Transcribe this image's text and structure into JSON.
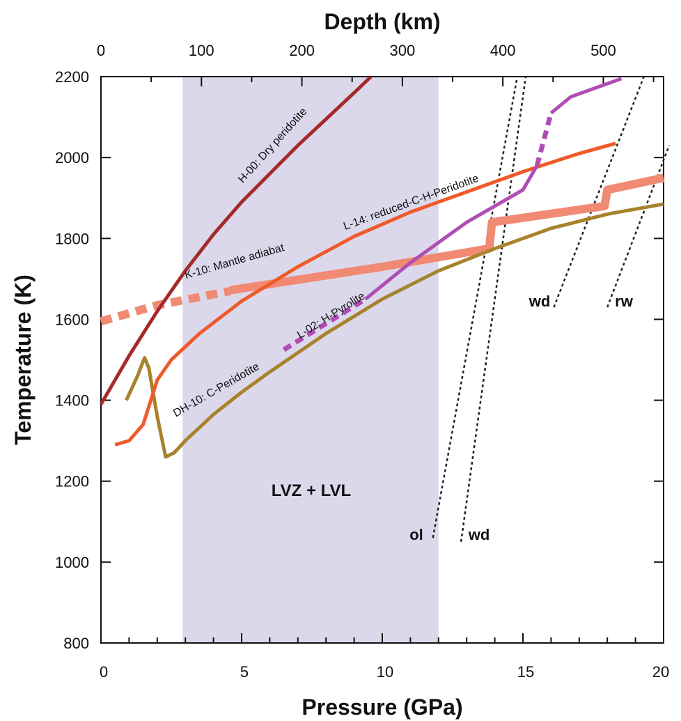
{
  "chart_data": {
    "type": "line",
    "title": "",
    "xlabel": "Pressure (GPa)",
    "ylabel": "Temperature (K)",
    "x2label": "Depth (km)",
    "xlim": [
      0,
      20
    ],
    "ylim": [
      800,
      2200
    ],
    "x2lim": [
      0,
      560
    ],
    "xticks": [
      0,
      5,
      10,
      15,
      20
    ],
    "yticks": [
      800,
      1000,
      1200,
      1400,
      1600,
      1800,
      2000,
      2200
    ],
    "x2ticks": [
      0,
      100,
      200,
      300,
      400,
      500
    ],
    "grid": false,
    "shaded_region": {
      "label": "LVZ + LVL",
      "x_range": [
        2.9,
        12
      ],
      "color": "#dcd8ec"
    },
    "series": [
      {
        "name": "H-00: Dry peridotite",
        "color": "#a52a2a",
        "style": "solid",
        "points": [
          [
            0,
            1390
          ],
          [
            1,
            1510
          ],
          [
            2,
            1620
          ],
          [
            3,
            1720
          ],
          [
            4,
            1810
          ],
          [
            5,
            1890
          ],
          [
            6,
            1960
          ],
          [
            7,
            2030
          ],
          [
            8,
            2095
          ],
          [
            9,
            2160
          ],
          [
            9.6,
            2200
          ]
        ]
      },
      {
        "name": "L-14: reduced-C-H-Peridotite",
        "color": "#ef5a2a",
        "style": "solid",
        "points": [
          [
            0.5,
            1290
          ],
          [
            1,
            1300
          ],
          [
            1.5,
            1340
          ],
          [
            2,
            1450
          ],
          [
            2.5,
            1500
          ],
          [
            3.5,
            1565
          ],
          [
            5,
            1645
          ],
          [
            7,
            1730
          ],
          [
            9,
            1805
          ],
          [
            11,
            1865
          ],
          [
            13,
            1915
          ],
          [
            15,
            1965
          ],
          [
            17,
            2010
          ],
          [
            18.3,
            2035
          ]
        ]
      },
      {
        "name": "K-10: Mantle adiabat",
        "color": "#f08a72",
        "style": "dashed_then_thick",
        "dashed_points": [
          [
            0,
            1595
          ],
          [
            2,
            1635
          ],
          [
            4.6,
            1670
          ]
        ],
        "points": [
          [
            4.6,
            1672
          ],
          [
            10,
            1730
          ],
          [
            13.8,
            1775
          ],
          [
            13.9,
            1840
          ],
          [
            17.9,
            1880
          ],
          [
            18,
            1920
          ],
          [
            20,
            1950
          ]
        ]
      },
      {
        "name": "L-02: H-Pyrolite",
        "color": "#b04db4",
        "style": "dashed_then_solid",
        "dashed_points": [
          [
            6.5,
            1525
          ],
          [
            9.4,
            1650
          ]
        ],
        "points": [
          [
            9.4,
            1650
          ],
          [
            11,
            1740
          ],
          [
            13,
            1840
          ],
          [
            15,
            1920
          ],
          [
            15.5,
            1980
          ]
        ],
        "dashed_points_2": [
          [
            15.5,
            1980
          ],
          [
            16,
            2110
          ]
        ],
        "points_2": [
          [
            16,
            2110
          ],
          [
            16.7,
            2150
          ],
          [
            18.5,
            2195
          ]
        ]
      },
      {
        "name": "DH-10: C-Peridotite",
        "color": "#a8822c",
        "style": "solid",
        "points": [
          [
            0.9,
            1400
          ],
          [
            1.3,
            1460
          ],
          [
            1.55,
            1505
          ],
          [
            1.7,
            1480
          ],
          [
            2,
            1360
          ],
          [
            2.3,
            1260
          ],
          [
            2.6,
            1270
          ],
          [
            3,
            1300
          ],
          [
            4,
            1365
          ],
          [
            5,
            1420
          ],
          [
            6,
            1470
          ],
          [
            8,
            1565
          ],
          [
            10,
            1650
          ],
          [
            12,
            1720
          ],
          [
            14,
            1775
          ],
          [
            16,
            1825
          ],
          [
            18,
            1860
          ],
          [
            20,
            1885
          ]
        ]
      }
    ],
    "phase_boundaries": [
      {
        "label": "ol",
        "color": "#222222",
        "style": "dotted",
        "points": [
          [
            11.8,
            1060
          ],
          [
            14.8,
            2200
          ]
        ]
      },
      {
        "label": "wd",
        "color": "#222222",
        "style": "dotted",
        "points": [
          [
            12.8,
            1050
          ],
          [
            15.1,
            2200
          ]
        ]
      },
      {
        "label": "wd",
        "color": "#222222",
        "style": "dotted",
        "points": [
          [
            16.1,
            1630
          ],
          [
            19.3,
            2200
          ]
        ]
      },
      {
        "label": "rw",
        "color": "#222222",
        "style": "dotted",
        "points": [
          [
            18,
            1630
          ],
          [
            20.2,
            2030
          ]
        ]
      }
    ]
  }
}
